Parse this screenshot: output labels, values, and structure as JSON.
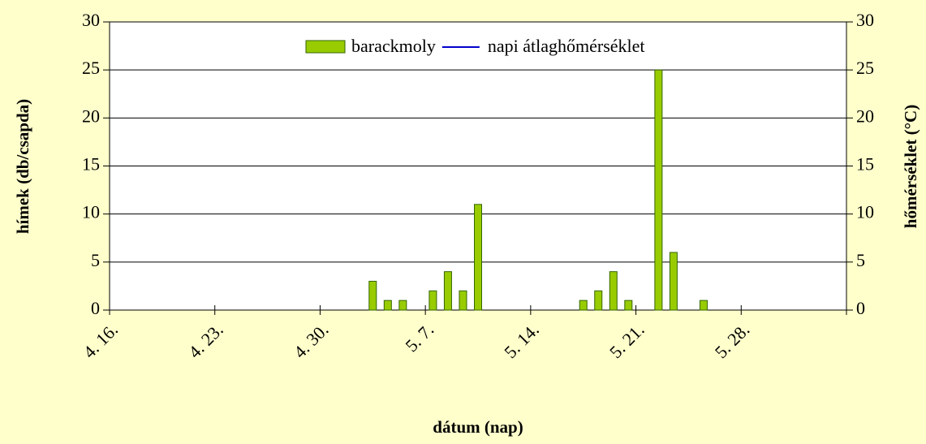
{
  "chart_data": {
    "type": "bar",
    "y_label": "hímek (db/csapda)",
    "y2_label": "hőmérséklet (°C)",
    "x_label": "dátum (nap)",
    "categories": [
      "4. 16.",
      null,
      null,
      null,
      null,
      null,
      null,
      "4. 23.",
      null,
      null,
      null,
      null,
      null,
      null,
      "4. 30.",
      null,
      null,
      null,
      null,
      null,
      null,
      "5. 7.",
      null,
      null,
      null,
      null,
      null,
      null,
      "5. 14.",
      null,
      null,
      null,
      null,
      null,
      null,
      "5. 21.",
      null,
      null,
      null,
      null,
      null,
      null,
      "5. 28.",
      null,
      null,
      null,
      null,
      null,
      null
    ],
    "series": [
      {
        "name": "barackmoly",
        "type": "bar",
        "color": "#99cc00",
        "values": [
          null,
          null,
          null,
          null,
          null,
          null,
          null,
          null,
          null,
          null,
          null,
          null,
          null,
          null,
          null,
          null,
          null,
          3,
          1,
          1,
          null,
          2,
          4,
          2,
          11,
          null,
          null,
          null,
          null,
          null,
          null,
          1,
          2,
          4,
          1,
          null,
          25,
          6,
          null,
          1,
          null,
          null,
          null,
          null,
          null,
          null,
          null,
          null,
          null
        ]
      },
      {
        "name": "napi átlaghőmérséklet",
        "type": "line",
        "axis": "y2",
        "color": "#0000cc",
        "values": [
          null,
          null,
          null,
          null,
          null,
          null,
          null,
          null,
          null,
          null,
          null,
          null,
          null,
          null,
          null,
          null,
          null,
          null,
          null,
          null,
          null,
          null,
          null,
          null,
          null,
          null,
          null,
          null,
          null,
          null,
          null,
          null,
          null,
          null,
          null,
          null,
          null,
          null,
          null,
          null,
          null,
          null,
          null,
          null,
          null,
          null,
          null,
          null,
          null
        ]
      }
    ],
    "ylim": [
      0,
      30
    ],
    "yticks": [
      0,
      5,
      10,
      15,
      20,
      25,
      30
    ],
    "y2lim": [
      0,
      30
    ],
    "y2ticks": [
      0,
      5,
      10,
      15,
      20,
      25,
      30
    ],
    "grid": true,
    "legend": "top"
  }
}
